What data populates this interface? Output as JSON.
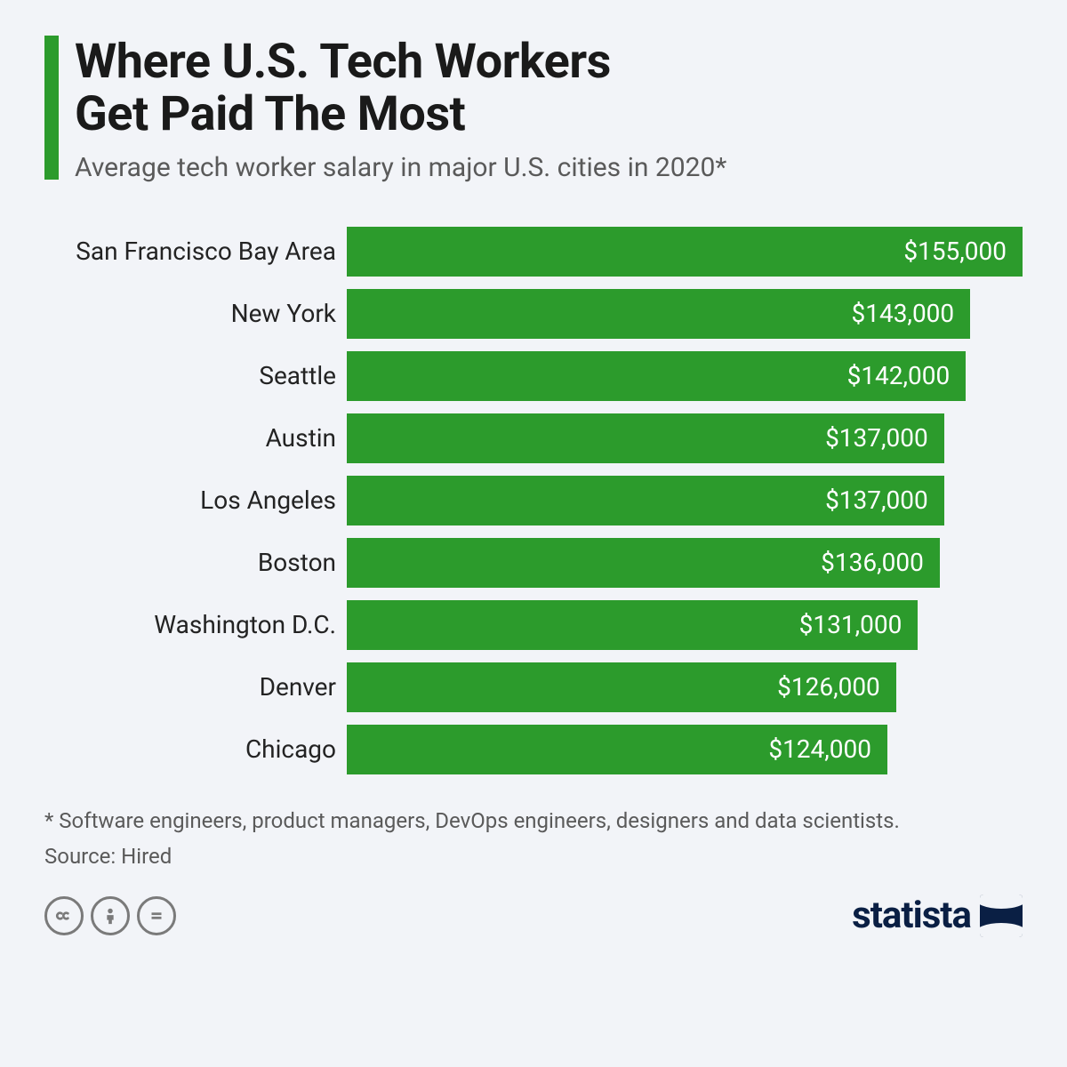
{
  "header": {
    "title_line1": "Where U.S. Tech Workers",
    "title_line2": "Get Paid The Most",
    "subtitle": "Average tech worker salary in major U.S. cities in 2020*",
    "accent_color": "#2c9b2c"
  },
  "chart": {
    "type": "bar-horizontal",
    "bar_color": "#2c9b2c",
    "value_text_color": "#ffffff",
    "label_fontsize": 28,
    "value_fontsize": 28,
    "max_value": 155000,
    "bars": [
      {
        "label": "San Francisco Bay Area",
        "value": 155000,
        "display": "$155,000"
      },
      {
        "label": "New York",
        "value": 143000,
        "display": "$143,000"
      },
      {
        "label": "Seattle",
        "value": 142000,
        "display": "$142,000"
      },
      {
        "label": "Austin",
        "value": 137000,
        "display": "$137,000"
      },
      {
        "label": "Los Angeles",
        "value": 137000,
        "display": "$137,000"
      },
      {
        "label": "Boston",
        "value": 136000,
        "display": "$136,000"
      },
      {
        "label": "Washington D.C.",
        "value": 131000,
        "display": "$131,000"
      },
      {
        "label": "Denver",
        "value": 126000,
        "display": "$126,000"
      },
      {
        "label": "Chicago",
        "value": 124000,
        "display": "$124,000"
      }
    ]
  },
  "footnote": "* Software engineers, product managers, DevOps engineers, designers and data scientists.",
  "source_label": "Source: Hired",
  "footer": {
    "cc_icons": [
      "cc",
      "by",
      "nd"
    ],
    "logo_text": "statista"
  },
  "colors": {
    "background": "#f2f4f8",
    "text_primary": "#1a1a1a",
    "text_secondary": "#5a5a5a",
    "logo_navy": "#0a1f44",
    "icon_gray": "#7a7a7a"
  }
}
